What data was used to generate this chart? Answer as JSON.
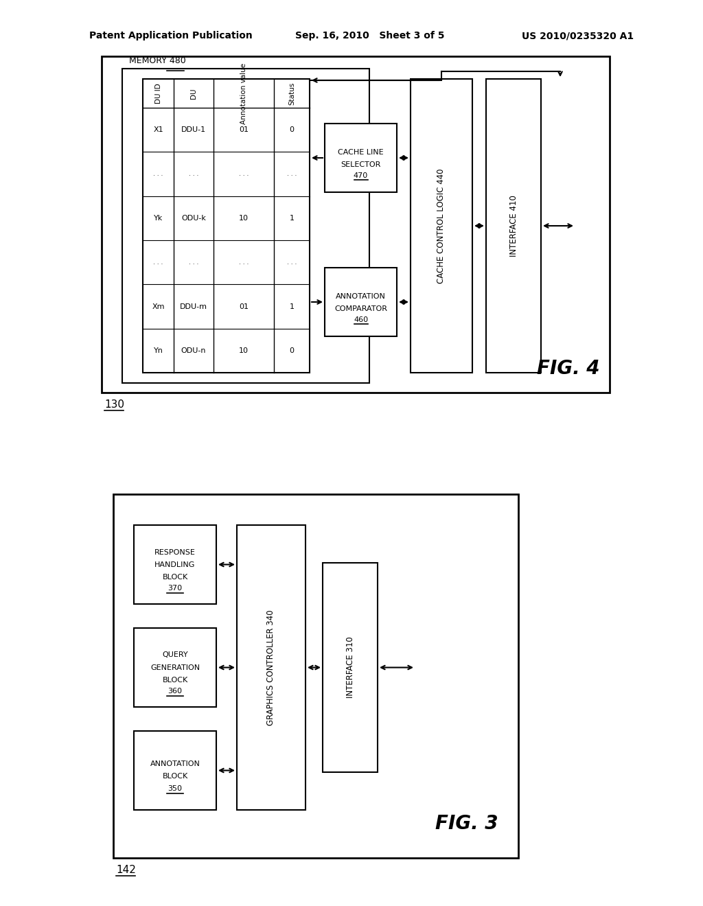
{
  "bg_color": "#ffffff",
  "header_left": "Patent Application Publication",
  "header_mid": "Sep. 16, 2010   Sheet 3 of 5",
  "header_right": "US 2010/0235320 A1",
  "fig4_label": "FIG. 4",
  "fig3_label": "FIG. 3",
  "fig4_num": "130",
  "fig3_num": "142",
  "memory_label": "MEMORY 480",
  "cache_line_selector_line1": "CACHE LINE",
  "cache_line_selector_line2": "SELECTOR 470",
  "cache_control_logic": "CACHE CONTROL LOGIC 440",
  "interface_410": "INTERFACE 410",
  "annotation_comparator_line1": "ANNOTATION",
  "annotation_comparator_line2": "COMPARATOR 460",
  "response_handling_line1": "RESPONSE",
  "response_handling_line2": "HANDLING",
  "response_handling_line3": "BLOCK 370",
  "query_generation_line1": "QUERY",
  "query_generation_line2": "GENERATION",
  "query_generation_line3": "BLOCK 360",
  "annotation_block_line1": "ANNOTATION",
  "annotation_block_line2": "BLOCK 350",
  "graphics_controller": "GRAPHICS CONTROLLER 340",
  "interface_310": "INTERFACE 310",
  "col_du_id": "DU ID",
  "col_du": "DU",
  "col_ann": "Annotation value",
  "col_status": "Status",
  "row_entries": [
    {
      "du_id": "X1",
      "du": "DDU-1",
      "ann": "01",
      "status": "0",
      "dots": false
    },
    {
      "du_id": "",
      "du": "",
      "ann": "",
      "status": "",
      "dots": true
    },
    {
      "du_id": "Yk",
      "du": "ODU-k",
      "ann": "10",
      "status": "1",
      "dots": false
    },
    {
      "du_id": "",
      "du": "",
      "ann": "",
      "status": "",
      "dots": true
    },
    {
      "du_id": "Xm",
      "du": "DDU-m",
      "ann": "01",
      "status": "1",
      "dots": false
    },
    {
      "du_id": "Yn",
      "du": "ODU-n",
      "ann": "10",
      "status": "0",
      "dots": false
    }
  ]
}
